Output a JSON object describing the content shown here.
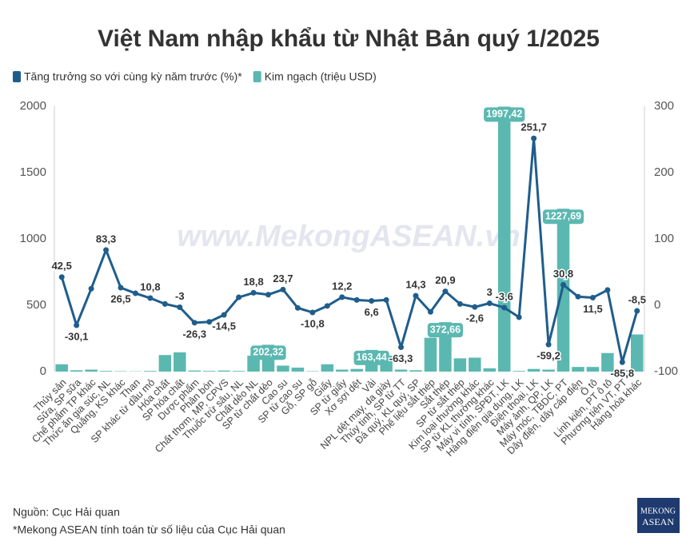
{
  "chart_data": {
    "type": "bar_line",
    "title": "Việt Nam nhập khẩu từ Nhật Bản quý 1/2025",
    "watermark": "www.MekongASEAN.vn",
    "categories": [
      "Thủy sản",
      "Sữa, SP sữa",
      "Chế phẩm TP khác",
      "Thức ăn gia súc, NL",
      "Quặng, KS khác",
      "Than",
      "SP khác từ dầu mỏ",
      "Hóa chất",
      "SP hóa chất",
      "Dược phẩm",
      "Phân bón",
      "Chất thơm, MP, CPVS",
      "Thuốc trừ sâu, NL",
      "Chất dẻo NL",
      "SP từ chất dẻo",
      "Cao su",
      "SP từ cao su",
      "Gỗ, SP gỗ",
      "Giấy",
      "SP từ giấy",
      "Xơ sợi dệt",
      "Vải",
      "NPL dệt may, da giày",
      "Thủy tinh, SP từ TT",
      "Đá quý, KL quý, SP",
      "Phế liệu sắt thép",
      "Sắt thép",
      "SP từ sắt thép",
      "Kim loại thường khác",
      "SP từ KL thường khác",
      "Máy vi tính, SPĐT, LK",
      "Hàng điện gia dụng, LK",
      "Điện thoại, LK",
      "Máy ảnh, QP, LK",
      "Máy móc, TBDC, PT",
      "Dây điện, dây cáp điện",
      "Ô tô",
      "Linh kiện, PT ô tô",
      "Phương tiện VT, PT",
      "Hàng hóa khác"
    ],
    "series": [
      {
        "name": "Tăng trưởng so với cùng kỳ năm trước (%)*",
        "type": "line",
        "axis": "y2",
        "color": "#1f5d8c",
        "values": [
          42.5,
          -30.1,
          25,
          83.3,
          26.5,
          18,
          10.8,
          2,
          -3,
          -26.3,
          -25,
          -14.5,
          12,
          18.8,
          16,
          23.7,
          -4,
          -10.8,
          -1,
          12.2,
          8,
          6.6,
          8,
          -63.3,
          14.3,
          -10,
          20.9,
          2,
          -2.6,
          3,
          -3.6,
          -18,
          251.7,
          -59.2,
          30.8,
          13,
          11.5,
          23,
          -85.8,
          -8.5
        ],
        "value_labels": [
          "42,5",
          "-30,1",
          null,
          "83,3",
          "26,5",
          null,
          "10,8",
          null,
          "-3",
          "-26,3",
          null,
          "-14,5",
          null,
          "18,8",
          null,
          "23,7",
          null,
          "-10,8",
          null,
          "12,2",
          null,
          "6,6",
          null,
          "-63,3",
          "14,3",
          null,
          "20,9",
          null,
          "-2,6",
          "3",
          "-3,6",
          null,
          "251,7",
          "-59,2",
          "30,8",
          null,
          "11,5",
          null,
          "-85,8",
          "-8,5"
        ]
      },
      {
        "name": "Kim ngạch (triệu USD)",
        "type": "bar",
        "axis": "y",
        "color": "#5bb8b1",
        "values": [
          55,
          10,
          15,
          5,
          3,
          2,
          5,
          125,
          145,
          8,
          5,
          8,
          5,
          120,
          202.32,
          45,
          30,
          3,
          55,
          15,
          20,
          163.44,
          120,
          15,
          10,
          255,
          372.66,
          100,
          105,
          25,
          1997.42,
          5,
          20,
          15,
          1227.69,
          35,
          35,
          140,
          10,
          280
        ],
        "value_labels": [
          null,
          null,
          null,
          null,
          null,
          null,
          null,
          null,
          null,
          null,
          null,
          null,
          null,
          null,
          "202,32",
          null,
          null,
          null,
          null,
          null,
          null,
          "163,44",
          null,
          null,
          null,
          null,
          "372,66",
          null,
          null,
          null,
          "1997,42",
          null,
          null,
          null,
          "1227,69",
          null,
          null,
          null,
          null,
          null
        ]
      }
    ],
    "ylim": [
      0,
      2000
    ],
    "yticks": [
      0,
      500,
      1000,
      1500,
      2000
    ],
    "y2lim": [
      -100,
      300
    ],
    "y2ticks": [
      -100,
      0,
      100,
      200,
      300
    ],
    "grid": false,
    "legend": "top-left",
    "notes": [
      "Nguồn: Cục Hải quan",
      "*Mekong ASEAN tính toán từ số liệu của Cục Hải quan"
    ],
    "logo": [
      "MEKONG",
      "ASEAN"
    ]
  }
}
